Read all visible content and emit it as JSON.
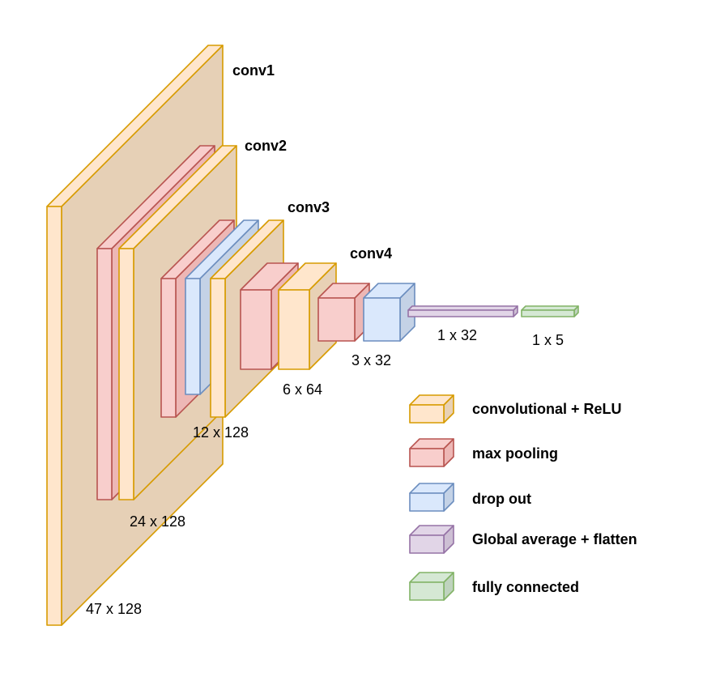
{
  "colors": {
    "conv": {
      "front": "#FFE6CC",
      "side": "#E8D1B5",
      "top": "#FFE6CC",
      "stroke": "#D79B00"
    },
    "pool": {
      "front": "#F8CECC",
      "side": "#EDB7B5",
      "top": "#F8CECC",
      "stroke": "#B85450"
    },
    "drop": {
      "front": "#DAE8FC",
      "side": "#C4D2E6",
      "top": "#DAE8FC",
      "stroke": "#6C8EBF"
    },
    "gap": {
      "front": "#E1D5E7",
      "side": "#CDBFD4",
      "top": "#E1D5E7",
      "stroke": "#9673A6"
    },
    "fc": {
      "front": "#D5E8D4",
      "side": "#BFD3BE",
      "top": "#D5E8D4",
      "stroke": "#82B366"
    },
    "conv1_face": "#E6D0B6"
  },
  "stages": [
    {
      "id": "conv1",
      "label": "conv1"
    },
    {
      "id": "conv2",
      "label": "conv2"
    },
    {
      "id": "conv3",
      "label": "conv3"
    },
    {
      "id": "conv4",
      "label": "conv4"
    }
  ],
  "dims": [
    {
      "id": "d47",
      "label": "47 x 128"
    },
    {
      "id": "d24",
      "label": "24 x 128"
    },
    {
      "id": "d12",
      "label": "12 x 128"
    },
    {
      "id": "d6",
      "label": "6 x 64"
    },
    {
      "id": "d3",
      "label": "3 x 32"
    },
    {
      "id": "d1x32",
      "label": "1 x 32"
    },
    {
      "id": "d1x5",
      "label": "1 x 5"
    }
  ],
  "legend": [
    {
      "id": "conv",
      "label": "convolutional + ReLU"
    },
    {
      "id": "pool",
      "label": "max pooling"
    },
    {
      "id": "drop",
      "label": "drop out"
    },
    {
      "id": "gap",
      "label": "Global average + flatten"
    },
    {
      "id": "fc",
      "label": "fully connected"
    }
  ]
}
